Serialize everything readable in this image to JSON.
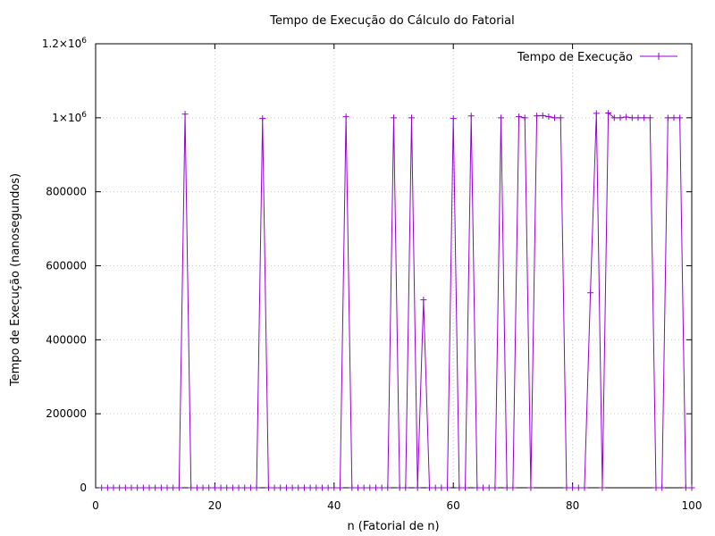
{
  "chart_data": {
    "type": "line",
    "title": "Tempo de Execução do Cálculo do Fatorial",
    "xlabel": "n (Fatorial de n)",
    "ylabel": "Tempo de Execução (nanosegundos)",
    "xlim": [
      0,
      100
    ],
    "ylim": [
      0,
      1200000
    ],
    "grid": true,
    "legend_position": "top-right",
    "x_ticks": [
      {
        "value": 0,
        "label": "0"
      },
      {
        "value": 20,
        "label": "20"
      },
      {
        "value": 40,
        "label": "40"
      },
      {
        "value": 60,
        "label": "60"
      },
      {
        "value": 80,
        "label": "80"
      },
      {
        "value": 100,
        "label": "100"
      }
    ],
    "y_ticks": [
      {
        "value": 0,
        "label": "0",
        "sup": ""
      },
      {
        "value": 200000,
        "label": "200000",
        "sup": ""
      },
      {
        "value": 400000,
        "label": "400000",
        "sup": ""
      },
      {
        "value": 600000,
        "label": "600000",
        "sup": ""
      },
      {
        "value": 800000,
        "label": "800000",
        "sup": ""
      },
      {
        "value": 1000000,
        "label": "1×10",
        "sup": "6"
      },
      {
        "value": 1200000,
        "label": "1.2×10",
        "sup": "6"
      }
    ],
    "series": [
      {
        "name": "Tempo de Execução",
        "color": "#9400d3",
        "marker": "plus",
        "x": [
          1,
          2,
          3,
          4,
          5,
          6,
          7,
          8,
          9,
          10,
          11,
          12,
          13,
          14,
          15,
          16,
          17,
          18,
          19,
          20,
          21,
          22,
          23,
          24,
          25,
          26,
          27,
          28,
          29,
          30,
          31,
          32,
          33,
          34,
          35,
          36,
          37,
          38,
          39,
          40,
          41,
          42,
          43,
          44,
          45,
          46,
          47,
          48,
          49,
          50,
          51,
          52,
          53,
          54,
          55,
          56,
          57,
          58,
          59,
          60,
          61,
          62,
          63,
          64,
          65,
          66,
          67,
          68,
          69,
          70,
          71,
          72,
          73,
          74,
          75,
          76,
          77,
          78,
          79,
          80,
          81,
          82,
          83,
          84,
          85,
          86,
          87,
          88,
          89,
          90,
          91,
          92,
          93,
          94,
          95,
          96,
          97,
          98,
          99,
          100
        ],
        "y": [
          0,
          0,
          0,
          0,
          0,
          0,
          0,
          0,
          0,
          0,
          0,
          0,
          0,
          0,
          1010000,
          0,
          0,
          0,
          0,
          0,
          0,
          0,
          0,
          0,
          0,
          0,
          0,
          998000,
          0,
          0,
          0,
          0,
          0,
          0,
          0,
          0,
          0,
          0,
          0,
          0,
          0,
          1003000,
          0,
          0,
          0,
          0,
          0,
          0,
          0,
          1000000,
          0,
          0,
          1000000,
          0,
          508000,
          0,
          0,
          0,
          0,
          998000,
          0,
          0,
          1005000,
          0,
          0,
          0,
          0,
          1000000,
          0,
          0,
          1003000,
          1000000,
          0,
          1005000,
          1006000,
          1003000,
          1000000,
          1000000,
          0,
          0,
          0,
          0,
          527000,
          1012000,
          0,
          1013000,
          1000000,
          1000000,
          1002000,
          1000000,
          1000000,
          1000000,
          1000000,
          0,
          0,
          1000000,
          1000000,
          1000000,
          0,
          0
        ]
      }
    ]
  }
}
